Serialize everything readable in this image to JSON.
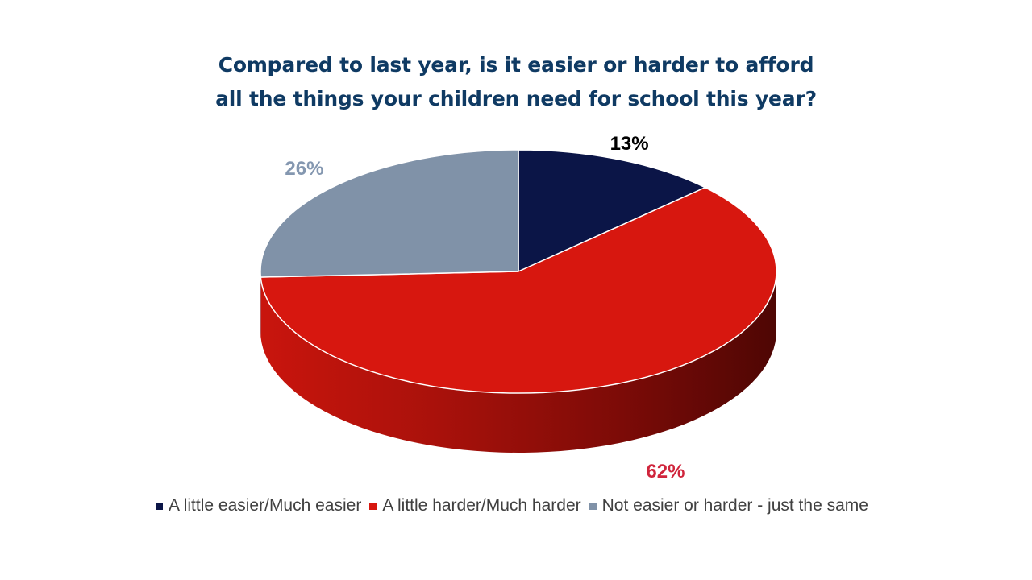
{
  "chart_data": {
    "type": "pie",
    "title_lines": [
      "Compared to last year, is it easier or harder to afford",
      "all the things your children need for school this year?"
    ],
    "categories": [
      "A little easier/Much easier",
      "A little harder/Much harder",
      "Not easier or harder - just the same"
    ],
    "values": [
      13,
      62,
      26
    ],
    "data_labels": [
      "13%",
      "62%",
      "26%"
    ],
    "colors": [
      "#0b1547",
      "#d7170f",
      "#8092a8"
    ],
    "label_colors": [
      "#000000",
      "#d0253c",
      "#8497b0"
    ],
    "legend_position": "bottom",
    "style": "3d"
  }
}
